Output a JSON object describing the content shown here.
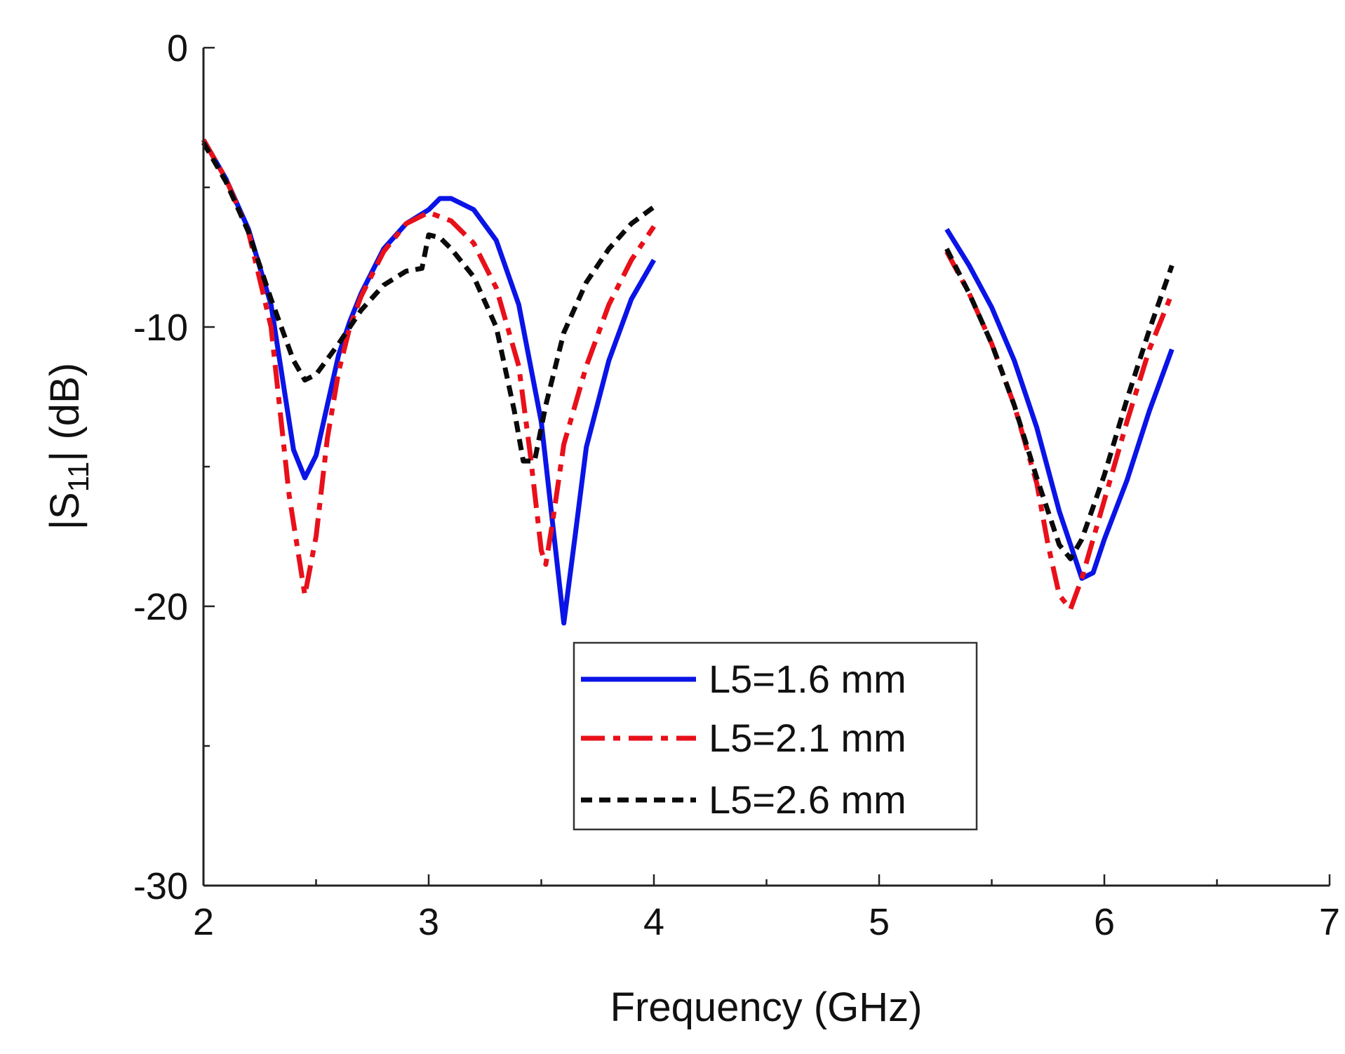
{
  "chart_data": {
    "type": "line",
    "title": "",
    "xlabel": "Frequency (GHz)",
    "ylabel_main": "|S",
    "ylabel_sub": "11",
    "ylabel_tail": "| (dB)",
    "xlim": [
      2,
      7
    ],
    "ylim": [
      -30,
      0
    ],
    "x_ticks": [
      2,
      3,
      4,
      5,
      6,
      7
    ],
    "y_ticks": [
      0,
      -10,
      -20,
      -30
    ],
    "x_tick_labels": [
      "2",
      "3",
      "4",
      "5",
      "6",
      "7"
    ],
    "y_tick_labels": [
      "0",
      "-10",
      "-20",
      "-30"
    ],
    "grid": false,
    "legend_position": "lower-center",
    "series": [
      {
        "name": "L5=1.6 mm",
        "color": "#0a14e6",
        "style": "solid",
        "segments": [
          [
            [
              2.0,
              -3.3
            ],
            [
              2.1,
              -4.7
            ],
            [
              2.2,
              -6.5
            ],
            [
              2.3,
              -9.2
            ],
            [
              2.4,
              -14.4
            ],
            [
              2.45,
              -15.4
            ],
            [
              2.5,
              -14.6
            ],
            [
              2.55,
              -12.8
            ],
            [
              2.6,
              -11.0
            ],
            [
              2.65,
              -9.8
            ],
            [
              2.7,
              -8.8
            ],
            [
              2.8,
              -7.2
            ],
            [
              2.9,
              -6.3
            ],
            [
              3.0,
              -5.8
            ],
            [
              3.05,
              -5.4
            ],
            [
              3.1,
              -5.4
            ],
            [
              3.2,
              -5.8
            ],
            [
              3.3,
              -6.9
            ],
            [
              3.4,
              -9.2
            ],
            [
              3.5,
              -13.4
            ],
            [
              3.55,
              -17.0
            ],
            [
              3.6,
              -20.6
            ],
            [
              3.65,
              -17.5
            ],
            [
              3.7,
              -14.3
            ],
            [
              3.8,
              -11.2
            ],
            [
              3.9,
              -9.0
            ],
            [
              4.0,
              -7.6
            ]
          ],
          [
            [
              5.3,
              -6.5
            ],
            [
              5.4,
              -7.8
            ],
            [
              5.5,
              -9.3
            ],
            [
              5.6,
              -11.2
            ],
            [
              5.7,
              -13.6
            ],
            [
              5.8,
              -16.6
            ],
            [
              5.9,
              -19.0
            ],
            [
              5.95,
              -18.8
            ],
            [
              6.0,
              -17.6
            ],
            [
              6.1,
              -15.5
            ],
            [
              6.2,
              -13.0
            ],
            [
              6.3,
              -10.8
            ]
          ]
        ]
      },
      {
        "name": "L5=2.1 mm",
        "color": "#e8101a",
        "style": "dashdot",
        "segments": [
          [
            [
              2.0,
              -3.3
            ],
            [
              2.1,
              -4.7
            ],
            [
              2.2,
              -6.6
            ],
            [
              2.3,
              -10.0
            ],
            [
              2.38,
              -16.0
            ],
            [
              2.45,
              -19.6
            ],
            [
              2.5,
              -17.5
            ],
            [
              2.55,
              -14.0
            ],
            [
              2.6,
              -11.6
            ],
            [
              2.65,
              -10.0
            ],
            [
              2.7,
              -8.9
            ],
            [
              2.8,
              -7.3
            ],
            [
              2.9,
              -6.3
            ],
            [
              3.0,
              -5.9
            ],
            [
              3.1,
              -6.2
            ],
            [
              3.2,
              -7.0
            ],
            [
              3.3,
              -8.6
            ],
            [
              3.4,
              -11.4
            ],
            [
              3.45,
              -14.5
            ],
            [
              3.5,
              -18.0
            ],
            [
              3.52,
              -18.5
            ],
            [
              3.55,
              -17.0
            ],
            [
              3.6,
              -14.2
            ],
            [
              3.7,
              -11.4
            ],
            [
              3.8,
              -9.2
            ],
            [
              3.9,
              -7.6
            ],
            [
              4.0,
              -6.4
            ]
          ],
          [
            [
              5.3,
              -7.3
            ],
            [
              5.4,
              -8.8
            ],
            [
              5.5,
              -10.6
            ],
            [
              5.6,
              -12.8
            ],
            [
              5.7,
              -15.6
            ],
            [
              5.75,
              -17.8
            ],
            [
              5.8,
              -19.6
            ],
            [
              5.85,
              -20.1
            ],
            [
              5.9,
              -19.0
            ],
            [
              6.0,
              -16.2
            ],
            [
              6.1,
              -13.4
            ],
            [
              6.2,
              -10.8
            ],
            [
              6.3,
              -8.8
            ]
          ]
        ]
      },
      {
        "name": "L5=2.6 mm",
        "color": "#0a0a0a",
        "style": "dashed",
        "segments": [
          [
            [
              2.0,
              -3.4
            ],
            [
              2.1,
              -4.8
            ],
            [
              2.2,
              -6.6
            ],
            [
              2.3,
              -9.0
            ],
            [
              2.4,
              -11.2
            ],
            [
              2.45,
              -11.9
            ],
            [
              2.5,
              -11.7
            ],
            [
              2.6,
              -10.6
            ],
            [
              2.7,
              -9.4
            ],
            [
              2.8,
              -8.5
            ],
            [
              2.9,
              -8.0
            ],
            [
              2.97,
              -7.9
            ],
            [
              3.0,
              -6.7
            ],
            [
              3.05,
              -6.8
            ],
            [
              3.1,
              -7.2
            ],
            [
              3.2,
              -8.2
            ],
            [
              3.3,
              -10.0
            ],
            [
              3.38,
              -13.0
            ],
            [
              3.42,
              -14.8
            ],
            [
              3.47,
              -14.8
            ],
            [
              3.52,
              -12.8
            ],
            [
              3.6,
              -10.2
            ],
            [
              3.7,
              -8.4
            ],
            [
              3.8,
              -7.2
            ],
            [
              3.9,
              -6.3
            ],
            [
              4.0,
              -5.7
            ]
          ],
          [
            [
              5.3,
              -7.2
            ],
            [
              5.4,
              -8.8
            ],
            [
              5.5,
              -10.6
            ],
            [
              5.6,
              -12.8
            ],
            [
              5.7,
              -15.4
            ],
            [
              5.8,
              -17.8
            ],
            [
              5.85,
              -18.3
            ],
            [
              5.9,
              -17.6
            ],
            [
              6.0,
              -15.3
            ],
            [
              6.1,
              -12.6
            ],
            [
              6.2,
              -10.1
            ],
            [
              6.3,
              -7.8
            ]
          ]
        ]
      }
    ]
  }
}
